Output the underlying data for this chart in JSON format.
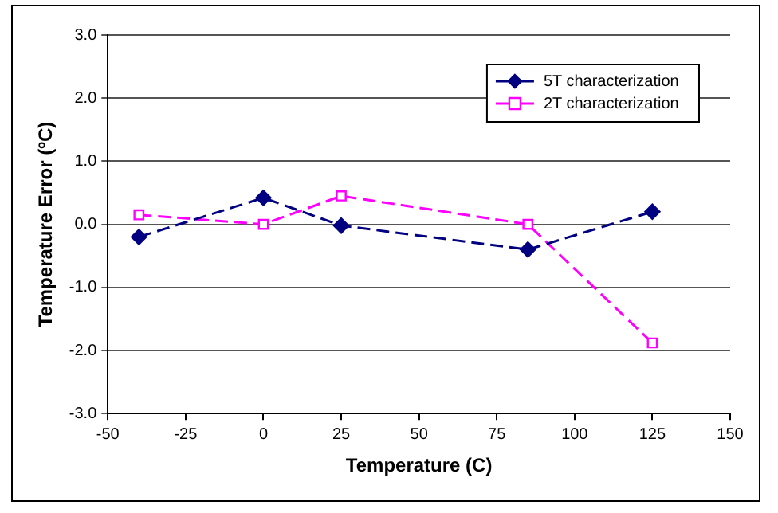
{
  "chart_data": {
    "type": "line",
    "xlabel": "Temperature (C)",
    "ylabel": "Temperature Error (ºC)",
    "xlim": [
      -50,
      150
    ],
    "xticks": [
      -50,
      -25,
      0,
      25,
      50,
      75,
      100,
      125,
      150
    ],
    "ylim": [
      -3,
      3
    ],
    "yticks": [
      {
        "value": -3,
        "label": "-3.0"
      },
      {
        "value": -2,
        "label": "-2.0"
      },
      {
        "value": -1,
        "label": "-1.0"
      },
      {
        "value": 0,
        "label": "0.0"
      },
      {
        "value": 1,
        "label": "1.0"
      },
      {
        "value": 2,
        "label": "2.0"
      },
      {
        "value": 3,
        "label": "3.0"
      }
    ],
    "grid": "y",
    "legend": "top right",
    "series": [
      {
        "name": "5T characterization",
        "color": "#000080",
        "marker": "diamond",
        "line_style": "dashed",
        "x": [
          -40,
          0,
          25,
          85,
          125
        ],
        "values": [
          -0.2,
          0.42,
          -0.02,
          -0.4,
          0.2
        ]
      },
      {
        "name": "2T characterization",
        "color": "#ff00ff",
        "marker": "square",
        "line_style": "dashed",
        "x": [
          -40,
          0,
          25,
          85,
          125
        ],
        "values": [
          0.15,
          0,
          0.45,
          0,
          -1.88
        ]
      }
    ]
  }
}
